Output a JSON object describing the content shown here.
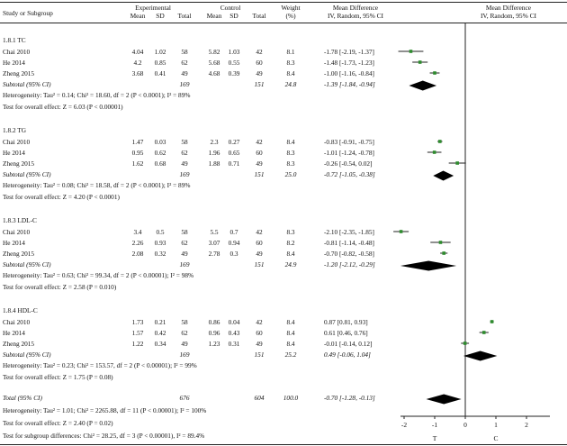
{
  "header": {
    "study_label": "Study or Subgroup",
    "experimental": "Experimental",
    "control": "Control",
    "mean": "Mean",
    "sd": "SD",
    "total": "Total",
    "weight": "Weight",
    "weight_unit": "(%)",
    "md": "Mean Difference",
    "md_method": "IV, Random, 95% CI",
    "md_plot": "Mean Difference",
    "md_plot_method": "IV, Random, 95% CI"
  },
  "subgroups": [
    {
      "name": "1.8.1 TC",
      "studies": [
        {
          "study": "Chai 2010",
          "e_mean": "4.04",
          "e_sd": "1.02",
          "e_total": "58",
          "c_mean": "5.82",
          "c_sd": "1.03",
          "c_total": "42",
          "weight": "8.1",
          "md_text": "-1.78 [-2.19, -1.37]"
        },
        {
          "study": "He 2014",
          "e_mean": "4.2",
          "e_sd": "0.85",
          "e_total": "62",
          "c_mean": "5.68",
          "c_sd": "0.55",
          "c_total": "60",
          "weight": "8.3",
          "md_text": "-1.48 [-1.73, -1.23]"
        },
        {
          "study": "Zheng 2015",
          "e_mean": "3.68",
          "e_sd": "0.41",
          "e_total": "49",
          "c_mean": "4.68",
          "c_sd": "0.39",
          "c_total": "49",
          "weight": "8.4",
          "md_text": "-1.00 [-1.16, -0.84]"
        }
      ],
      "subtotal": {
        "label": "Subtotal (95% CI)",
        "e_total": "169",
        "c_total": "151",
        "weight": "24.8",
        "md_text": "-1.39 [-1.84, -0.94]"
      },
      "heterogeneity": "Heterogeneity: Tau² = 0.14; Chi² = 18.60, df = 2 (P < 0.0001); I² = 89%",
      "overall": "Test for overall effect: Z = 6.03 (P < 0.00001)"
    },
    {
      "name": "1.8.2 TG",
      "studies": [
        {
          "study": "Chai 2010",
          "e_mean": "1.47",
          "e_sd": "0.03",
          "e_total": "58",
          "c_mean": "2.3",
          "c_sd": "0.27",
          "c_total": "42",
          "weight": "8.4",
          "md_text": "-0.83 [-0.91, -0.75]"
        },
        {
          "study": "He 2014",
          "e_mean": "0.95",
          "e_sd": "0.62",
          "e_total": "62",
          "c_mean": "1.96",
          "c_sd": "0.65",
          "c_total": "60",
          "weight": "8.3",
          "md_text": "-1.01 [-1.24, -0.78]"
        },
        {
          "study": "Zheng 2015",
          "e_mean": "1.62",
          "e_sd": "0.68",
          "e_total": "49",
          "c_mean": "1.88",
          "c_sd": "0.71",
          "c_total": "49",
          "weight": "8.3",
          "md_text": "-0.26 [-0.54, 0.02]"
        }
      ],
      "subtotal": {
        "label": "Subtotal (95% CI)",
        "e_total": "169",
        "c_total": "151",
        "weight": "25.0",
        "md_text": "-0.72 [-1.05, -0.38]"
      },
      "heterogeneity": "Heterogeneity: Tau² = 0.08; Chi² = 18.58, df = 2 (P < 0.0001); I² = 89%",
      "overall": "Test for overall effect: Z = 4.20 (P < 0.0001)"
    },
    {
      "name": "1.8.3 LDL-C",
      "studies": [
        {
          "study": "Chai 2010",
          "e_mean": "3.4",
          "e_sd": "0.5",
          "e_total": "58",
          "c_mean": "5.5",
          "c_sd": "0.7",
          "c_total": "42",
          "weight": "8.3",
          "md_text": "-2.10 [-2.35, -1.85]"
        },
        {
          "study": "He 2014",
          "e_mean": "2.26",
          "e_sd": "0.93",
          "e_total": "62",
          "c_mean": "3.07",
          "c_sd": "0.94",
          "c_total": "60",
          "weight": "8.2",
          "md_text": "-0.81 [-1.14, -0.48]"
        },
        {
          "study": "Zheng 2015",
          "e_mean": "2.08",
          "e_sd": "0.32",
          "e_total": "49",
          "c_mean": "2.78",
          "c_sd": "0.3",
          "c_total": "49",
          "weight": "8.4",
          "md_text": "-0.70 [-0.82, -0.58]"
        }
      ],
      "subtotal": {
        "label": "Subtotal (95% CI)",
        "e_total": "169",
        "c_total": "151",
        "weight": "24.9",
        "md_text": "-1.20 [-2.12, -0.29]"
      },
      "heterogeneity": "Heterogeneity: Tau² = 0.63; Chi² = 99.34, df = 2 (P < 0.00001); I² = 98%",
      "overall": "Test for overall effect: Z = 2.58 (P = 0.010)"
    },
    {
      "name": "1.8.4 HDL-C",
      "studies": [
        {
          "study": "Chai 2010",
          "e_mean": "1.73",
          "e_sd": "0.21",
          "e_total": "58",
          "c_mean": "0.86",
          "c_sd": "0.04",
          "c_total": "42",
          "weight": "8.4",
          "md_text": "0.87 [0.81, 0.93]"
        },
        {
          "study": "He 2014",
          "e_mean": "1.57",
          "e_sd": "0.42",
          "e_total": "62",
          "c_mean": "0.96",
          "c_sd": "0.43",
          "c_total": "60",
          "weight": "8.4",
          "md_text": "0.61 [0.46, 0.76]"
        },
        {
          "study": "Zheng 2015",
          "e_mean": "1.22",
          "e_sd": "0.34",
          "e_total": "49",
          "c_mean": "1.23",
          "c_sd": "0.31",
          "c_total": "49",
          "weight": "8.4",
          "md_text": "-0.01 [-0.14, 0.12]"
        }
      ],
      "subtotal": {
        "label": "Subtotal (95% CI)",
        "e_total": "169",
        "c_total": "151",
        "weight": "25.2",
        "md_text": "0.49 [-0.06, 1.04]"
      },
      "heterogeneity": "Heterogeneity: Tau² = 0.23; Chi² = 153.57, df = 2 (P < 0.00001); I² = 99%",
      "overall": "Test for overall effect: Z = 1.75 (P = 0.08)"
    }
  ],
  "total": {
    "label": "Total (95% CI)",
    "e_total": "676",
    "c_total": "604",
    "weight": "100.0",
    "md_text": "-0.70 [-1.28, -0.13]"
  },
  "footer": {
    "heterogeneity": "Heterogeneity: Tau² = 1.01; Chi² = 2265.88, df = 11 (P < 0.00001); I² = 100%",
    "overall": "Test for overall effect: Z = 2.40 (P = 0.02)",
    "subgroup_diff": "Test for subgroup differences: Chi² = 28.25, df = 3 (P < 0.00001), I² = 89.4%"
  },
  "colors": {
    "study_marker": "#2e8b2e",
    "line": "#222222"
  },
  "chart_data": {
    "type": "forest",
    "xlim": [
      -3,
      3
    ],
    "xticks": [
      "-2",
      "-1",
      "0",
      "1",
      "2"
    ],
    "xtick_values": [
      -2,
      -1,
      0,
      1,
      2
    ],
    "axis_left_label": "T",
    "axis_right_label": "C",
    "studies": [
      {
        "group": "1.8.1 TC",
        "md": -1.78,
        "lo": -2.19,
        "hi": -1.37
      },
      {
        "group": "1.8.1 TC",
        "md": -1.48,
        "lo": -1.73,
        "hi": -1.23
      },
      {
        "group": "1.8.1 TC",
        "md": -1.0,
        "lo": -1.16,
        "hi": -0.84
      },
      {
        "group": "1.8.2 TG",
        "md": -0.83,
        "lo": -0.91,
        "hi": -0.75
      },
      {
        "group": "1.8.2 TG",
        "md": -1.01,
        "lo": -1.24,
        "hi": -0.78
      },
      {
        "group": "1.8.2 TG",
        "md": -0.26,
        "lo": -0.54,
        "hi": 0.02
      },
      {
        "group": "1.8.3 LDL-C",
        "md": -2.1,
        "lo": -2.35,
        "hi": -1.85
      },
      {
        "group": "1.8.3 LDL-C",
        "md": -0.81,
        "lo": -1.14,
        "hi": -0.48
      },
      {
        "group": "1.8.3 LDL-C",
        "md": -0.7,
        "lo": -0.82,
        "hi": -0.58
      },
      {
        "group": "1.8.4 HDL-C",
        "md": 0.87,
        "lo": 0.81,
        "hi": 0.93
      },
      {
        "group": "1.8.4 HDL-C",
        "md": 0.61,
        "lo": 0.46,
        "hi": 0.76
      },
      {
        "group": "1.8.4 HDL-C",
        "md": -0.01,
        "lo": -0.14,
        "hi": 0.12
      }
    ],
    "subtotals": [
      {
        "group": "1.8.1 TC",
        "md": -1.39,
        "lo": -1.84,
        "hi": -0.94
      },
      {
        "group": "1.8.2 TG",
        "md": -0.72,
        "lo": -1.05,
        "hi": -0.38
      },
      {
        "group": "1.8.3 LDL-C",
        "md": -1.2,
        "lo": -2.12,
        "hi": -0.29
      },
      {
        "group": "1.8.4 HDL-C",
        "md": 0.49,
        "lo": -0.06,
        "hi": 1.04
      }
    ],
    "total": {
      "md": -0.7,
      "lo": -1.28,
      "hi": -0.13
    }
  }
}
